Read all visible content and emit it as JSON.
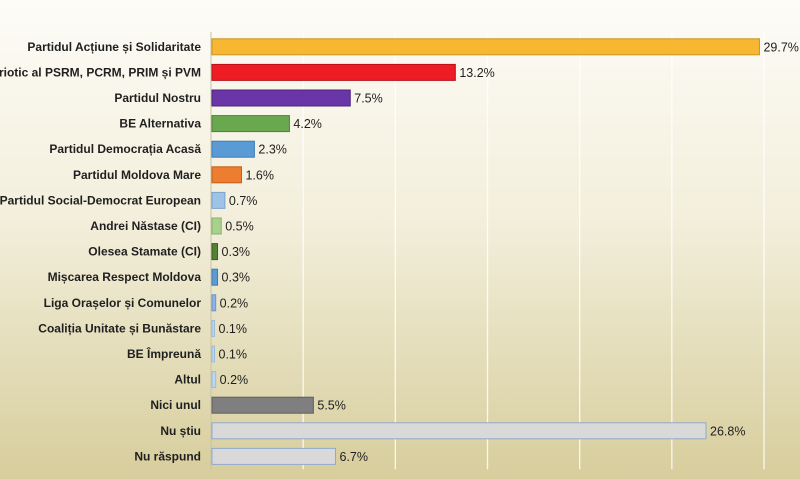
{
  "chart_data": {
    "type": "bar",
    "orientation": "horizontal",
    "title": "",
    "xlabel": "",
    "ylabel": "",
    "xlim": [
      0,
      30
    ],
    "grid": "vertical",
    "categories": [
      "Partidul Acțiune și Solidaritate",
      "Blocul Electoral al Comuniștilor și Socialiștilor / Patriotic al PSRM, PCRM, PRIM și PVM",
      "Partidul Nostru",
      "BE Alternativa",
      "Partidul Democrația Acasă",
      "Partidul Moldova Mare",
      "Partidul Social-Democrat European",
      "Andrei Năstase (CI)",
      "Olesea Stamate (CI)",
      "Mișcarea Respect Moldova",
      "Liga Orașelor și Comunelor",
      "Coaliția Unitate și Bunăstare",
      "BE Împreună",
      "Altul",
      "Nici unul",
      "Nu știu",
      "Nu răspund"
    ],
    "display_labels": [
      "Partidul Acțiune și Solidaritate",
      "triotic al PSRM, PCRM, PRIM și PVM",
      "Partidul Nostru",
      "BE Alternativa",
      "Partidul Democrația Acasă",
      "Partidul Moldova Mare",
      "Partidul Social-Democrat European",
      "Andrei Năstase (CI)",
      "Olesea Stamate (CI)",
      "Mișcarea Respect Moldova",
      "Liga Orașelor și Comunelor",
      "Coaliția Unitate și Bunăstare",
      "BE Împreună",
      "Altul",
      "Nici unul",
      "Nu știu",
      "Nu răspund"
    ],
    "values": [
      29.7,
      13.2,
      7.5,
      4.2,
      2.3,
      1.6,
      0.7,
      0.5,
      0.3,
      0.3,
      0.2,
      0.1,
      0.1,
      0.2,
      5.5,
      26.8,
      6.7
    ],
    "value_labels": [
      "29.7%",
      "13.2%",
      "7.5%",
      "4.2%",
      "2.3%",
      "1.6%",
      "0.7%",
      "0.5%",
      "0.3%",
      "0.3%",
      "0.2%",
      "0.1%",
      "0.1%",
      "0.2%",
      "5.5%",
      "26.8%",
      "6.7%"
    ],
    "colors": [
      "#f7b733",
      "#ee1c25",
      "#6a35a6",
      "#6aa84f",
      "#5b9bd5",
      "#ed7d31",
      "#9dc3e6",
      "#a9d18e",
      "#548235",
      "#5b9bd5",
      "#8fb4e3",
      "#bdd7ee",
      "#bdd7ee",
      "#bdd7ee",
      "#7f7f7f",
      "#d9d9d9",
      "#d9d9d9"
    ],
    "border_colors": [
      "#c99620",
      "#b81119",
      "#4e2380",
      "#4f7f39",
      "#3f7cb4",
      "#c4601c",
      "#7aa4cc",
      "#85b26a",
      "#3b5e24",
      "#3f7cb4",
      "#6b94c8",
      "#9bbbd8",
      "#9bbbd8",
      "#9bbbd8",
      "#5f5f5f",
      "#8faacc",
      "#8faacc"
    ]
  }
}
